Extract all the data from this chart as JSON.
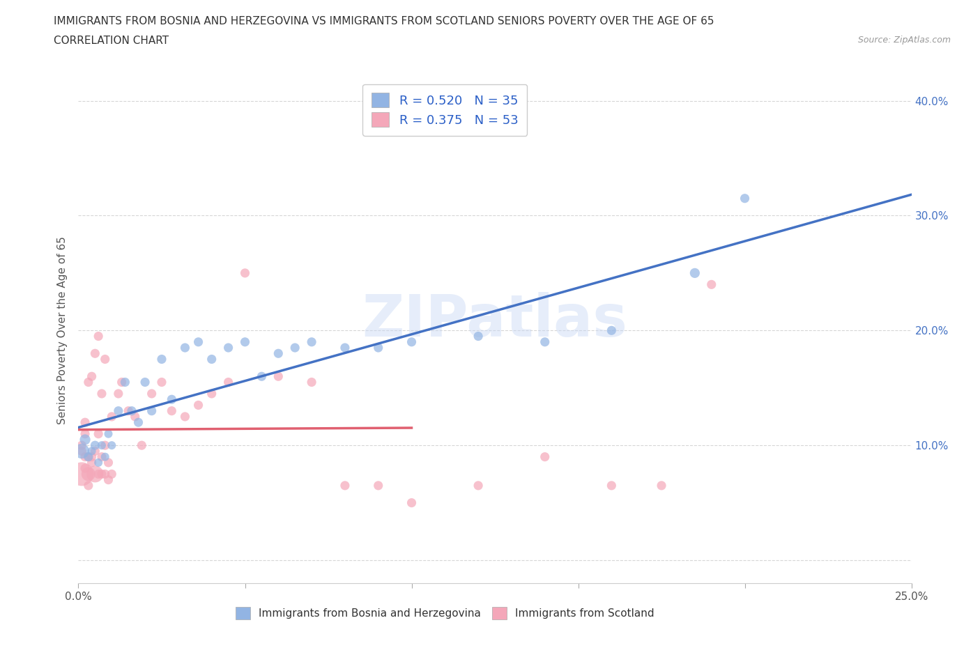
{
  "title_line1": "IMMIGRANTS FROM BOSNIA AND HERZEGOVINA VS IMMIGRANTS FROM SCOTLAND SENIORS POVERTY OVER THE AGE OF 65",
  "title_line2": "CORRELATION CHART",
  "source": "Source: ZipAtlas.com",
  "ylabel": "Seniors Poverty Over the Age of 65",
  "xlim": [
    0.0,
    0.25
  ],
  "ylim": [
    -0.02,
    0.42
  ],
  "xticks": [
    0.0,
    0.05,
    0.1,
    0.15,
    0.2,
    0.25
  ],
  "yticks": [
    0.0,
    0.1,
    0.2,
    0.3,
    0.4
  ],
  "watermark": "ZIPatlas",
  "bosnia_color": "#92b4e3",
  "scotland_color": "#f4a7b9",
  "bosnia_line_color": "#4472c4",
  "scotland_line_color": "#e06070",
  "legend_R_bosnia": "R = 0.520",
  "legend_N_bosnia": "N = 35",
  "legend_R_scotland": "R = 0.375",
  "legend_N_scotland": "N = 53",
  "bosnia_x": [
    0.001,
    0.002,
    0.003,
    0.004,
    0.005,
    0.006,
    0.007,
    0.008,
    0.009,
    0.01,
    0.012,
    0.014,
    0.016,
    0.018,
    0.02,
    0.022,
    0.025,
    0.028,
    0.032,
    0.036,
    0.04,
    0.045,
    0.05,
    0.055,
    0.06,
    0.065,
    0.07,
    0.08,
    0.09,
    0.1,
    0.12,
    0.14,
    0.16,
    0.185,
    0.2
  ],
  "bosnia_y": [
    0.095,
    0.105,
    0.09,
    0.095,
    0.1,
    0.085,
    0.1,
    0.09,
    0.11,
    0.1,
    0.13,
    0.155,
    0.13,
    0.12,
    0.155,
    0.13,
    0.175,
    0.14,
    0.185,
    0.19,
    0.175,
    0.185,
    0.19,
    0.16,
    0.18,
    0.185,
    0.19,
    0.185,
    0.185,
    0.19,
    0.195,
    0.19,
    0.2,
    0.25,
    0.315
  ],
  "bosnia_size": [
    80,
    40,
    30,
    25,
    30,
    25,
    25,
    25,
    25,
    25,
    30,
    30,
    30,
    30,
    30,
    30,
    30,
    30,
    30,
    30,
    30,
    30,
    30,
    30,
    30,
    30,
    30,
    30,
    30,
    30,
    30,
    30,
    30,
    35,
    30
  ],
  "scotland_x": [
    0.001,
    0.001,
    0.001,
    0.002,
    0.002,
    0.002,
    0.002,
    0.003,
    0.003,
    0.003,
    0.003,
    0.004,
    0.004,
    0.004,
    0.005,
    0.005,
    0.005,
    0.006,
    0.006,
    0.006,
    0.007,
    0.007,
    0.007,
    0.008,
    0.008,
    0.008,
    0.009,
    0.009,
    0.01,
    0.01,
    0.012,
    0.013,
    0.015,
    0.017,
    0.019,
    0.022,
    0.025,
    0.028,
    0.032,
    0.036,
    0.04,
    0.045,
    0.05,
    0.06,
    0.07,
    0.08,
    0.09,
    0.1,
    0.12,
    0.14,
    0.16,
    0.175,
    0.19
  ],
  "scotland_y": [
    0.095,
    0.1,
    0.075,
    0.12,
    0.09,
    0.08,
    0.11,
    0.155,
    0.09,
    0.075,
    0.065,
    0.16,
    0.09,
    0.085,
    0.18,
    0.095,
    0.075,
    0.195,
    0.11,
    0.075,
    0.145,
    0.09,
    0.075,
    0.175,
    0.1,
    0.075,
    0.085,
    0.07,
    0.125,
    0.075,
    0.145,
    0.155,
    0.13,
    0.125,
    0.1,
    0.145,
    0.155,
    0.13,
    0.125,
    0.135,
    0.145,
    0.155,
    0.25,
    0.16,
    0.155,
    0.065,
    0.065,
    0.05,
    0.065,
    0.09,
    0.065,
    0.065,
    0.24
  ],
  "scotland_size": [
    30,
    30,
    200,
    30,
    30,
    30,
    30,
    30,
    30,
    70,
    30,
    30,
    30,
    30,
    30,
    30,
    100,
    30,
    30,
    30,
    30,
    30,
    30,
    30,
    30,
    30,
    30,
    30,
    30,
    30,
    30,
    30,
    30,
    30,
    30,
    30,
    30,
    30,
    30,
    30,
    30,
    30,
    30,
    30,
    30,
    30,
    30,
    30,
    30,
    30,
    30,
    30,
    30
  ]
}
